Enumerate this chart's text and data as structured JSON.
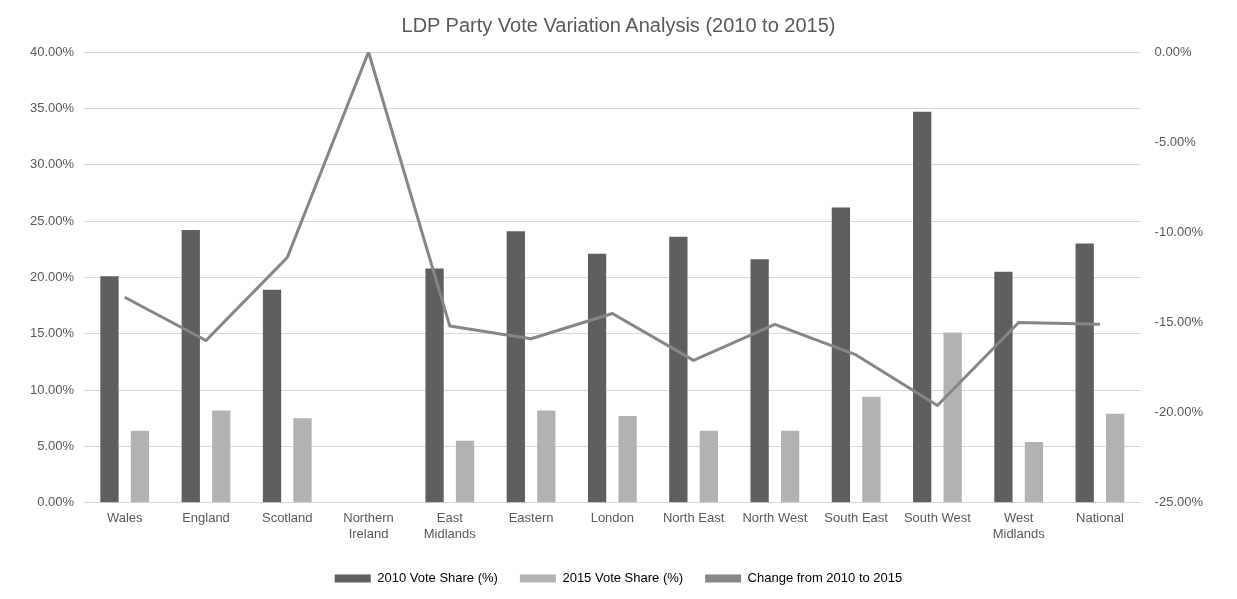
{
  "chart_data": {
    "type": "bar",
    "title": "LDP Party Vote Variation Analysis (2010 to 2015)",
    "categories": [
      "Wales",
      "England",
      "Scotland",
      "Northern Ireland",
      "East Midlands",
      "Eastern",
      "London",
      "North East",
      "North West",
      "South East",
      "South West",
      "West Midlands",
      "National"
    ],
    "series": [
      {
        "name": "2010 Vote Share (%)",
        "color": "#5f5f5f",
        "values": [
          20.1,
          24.2,
          18.9,
          null,
          20.8,
          24.1,
          22.1,
          23.6,
          21.6,
          26.2,
          34.7,
          20.5,
          23.0
        ]
      },
      {
        "name": "2015 Vote Share (%)",
        "color": "#b2b2b2",
        "values": [
          6.4,
          8.2,
          7.5,
          null,
          5.5,
          8.2,
          7.7,
          6.4,
          6.4,
          9.4,
          15.1,
          5.4,
          7.9
        ]
      },
      {
        "name": "Change from 2010 to 2015",
        "type": "line",
        "axis": "y2",
        "color": "#868686",
        "values": [
          -13.6,
          -16.0,
          -11.4,
          0,
          -15.2,
          -15.9,
          -14.5,
          -17.1,
          -15.1,
          -16.8,
          -19.6,
          -15.0,
          -15.1
        ]
      }
    ],
    "ylim": [
      0,
      40
    ],
    "yticks": [
      {
        "value": 0,
        "label": "0.00%"
      },
      {
        "value": 5,
        "label": "5.00%"
      },
      {
        "value": 10,
        "label": "10.00%"
      },
      {
        "value": 15,
        "label": "15.00%"
      },
      {
        "value": 20,
        "label": "20.00%"
      },
      {
        "value": 25,
        "label": "25.00%"
      },
      {
        "value": 30,
        "label": "30.00%"
      },
      {
        "value": 35,
        "label": "35.00%"
      },
      {
        "value": 40,
        "label": "40.00%"
      }
    ],
    "y2lim": [
      -25,
      0
    ],
    "y2ticks": [
      {
        "value": -25,
        "label": "-25.00%"
      },
      {
        "value": -20,
        "label": "-20.00%"
      },
      {
        "value": -15,
        "label": "-15.00%"
      },
      {
        "value": -10,
        "label": "-10.00%"
      },
      {
        "value": -5,
        "label": "-5.00%"
      },
      {
        "value": 0,
        "label": "0.00%"
      }
    ],
    "grid": "y",
    "legend": "bottom",
    "marker": "none",
    "line_style": "solid"
  }
}
